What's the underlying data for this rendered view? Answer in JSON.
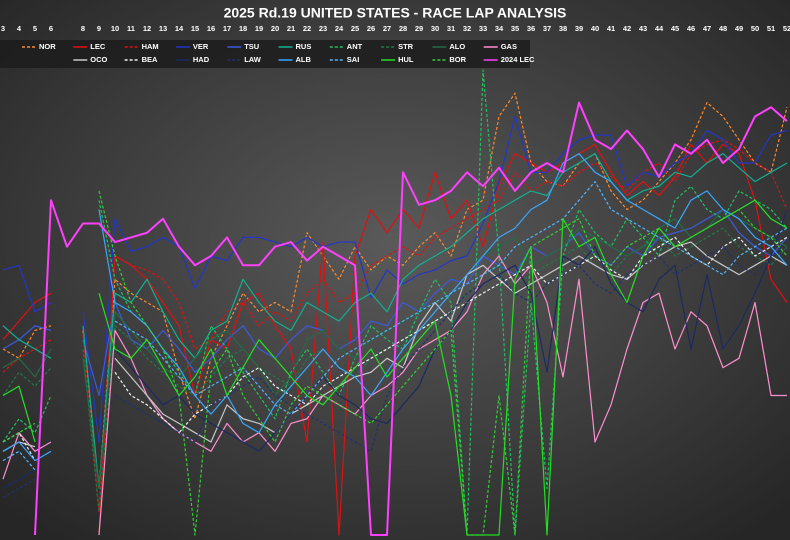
{
  "chart_data": {
    "type": "line",
    "title": "2025 Rd.19 UNITED STATES - RACE LAP ANALYSIS",
    "categories": [
      "3",
      "4",
      "5",
      "6",
      null,
      "8",
      "9",
      "10",
      "11",
      "12",
      "13",
      "14",
      "15",
      "16",
      "17",
      "18",
      "19",
      "20",
      "21",
      "22",
      "23",
      "24",
      "25",
      "26",
      "27",
      "28",
      "29",
      "30",
      "31",
      "32",
      "33",
      "34",
      "35",
      "36",
      "37",
      "38",
      "39",
      "40",
      "41",
      "42",
      "43",
      "44",
      "45",
      "46",
      "47",
      "48",
      "49",
      "50",
      "51",
      "52"
    ],
    "ylim": [
      0,
      100
    ],
    "series": [
      {
        "name": "NOR",
        "color": "#ff8a2a",
        "style": "dashed",
        "values": [
          40,
          38,
          44,
          45,
          null,
          44,
          10,
          55,
          52,
          50,
          48,
          35,
          25,
          38,
          45,
          52,
          48,
          50,
          48,
          65,
          60,
          55,
          62,
          57,
          60,
          58,
          62,
          65,
          60,
          70,
          72,
          90,
          95,
          80,
          76,
          75,
          80,
          82,
          74,
          70,
          72,
          76,
          80,
          85,
          93,
          90,
          85,
          80,
          78,
          92
        ]
      },
      {
        "name": "LEC",
        "color": "#e01010",
        "style": "solid",
        "values": [
          42,
          46,
          50,
          52,
          null,
          null,
          0,
          60,
          58,
          55,
          50,
          45,
          30,
          42,
          40,
          50,
          52,
          45,
          40,
          20,
          63,
          0,
          60,
          70,
          65,
          70,
          66,
          78,
          68,
          72,
          62,
          75,
          82,
          80,
          78,
          80,
          82,
          84,
          78,
          73,
          76,
          73,
          77,
          84,
          80,
          84,
          82,
          72,
          55,
          50
        ]
      },
      {
        "name": "HAM",
        "color": "#e01010",
        "style": "dashed",
        "values": [
          35,
          38,
          40,
          42,
          null,
          43,
          5,
          60,
          58,
          57,
          55,
          50,
          40,
          42,
          48,
          50,
          45,
          48,
          46,
          52,
          55,
          50,
          52,
          58,
          60,
          62,
          60,
          64,
          66,
          68,
          70,
          72,
          78,
          74,
          76,
          75,
          78,
          80,
          77,
          74,
          78,
          80,
          76,
          82,
          84,
          85,
          83,
          80,
          78,
          70
        ]
      },
      {
        "name": "VER",
        "color": "#2336c8",
        "style": "solid",
        "values": [
          57,
          58,
          48,
          50,
          null,
          48,
          20,
          68,
          61,
          62,
          64,
          62,
          53,
          60,
          59,
          64,
          64,
          63,
          62,
          64,
          62,
          63,
          63,
          51,
          57,
          54,
          56,
          57,
          59,
          60,
          67,
          76,
          90,
          78,
          78,
          82,
          85,
          86,
          86,
          75,
          78,
          77,
          80,
          82,
          87,
          85,
          80,
          80,
          86,
          87
        ]
      },
      {
        "name": "TSU",
        "color": "#3b5bdb",
        "style": "solid",
        "values": [
          40,
          42,
          45,
          44,
          null,
          42,
          30,
          50,
          42,
          40,
          44,
          40,
          35,
          38,
          42,
          45,
          40,
          38,
          42,
          45,
          44,
          40,
          42,
          46,
          45,
          50,
          48,
          52,
          55,
          54,
          60,
          58,
          56,
          62,
          60,
          62,
          65,
          60,
          58,
          62,
          60,
          64,
          65,
          66,
          68,
          70,
          65,
          62,
          60,
          64
        ]
      },
      {
        "name": "RUS",
        "color": "#10b090",
        "style": "solid",
        "values": [
          45,
          42,
          40,
          38,
          null,
          45,
          10,
          52,
          50,
          55,
          48,
          42,
          38,
          44,
          46,
          55,
          50,
          46,
          44,
          50,
          48,
          46,
          50,
          52,
          48,
          55,
          58,
          60,
          62,
          65,
          68,
          70,
          72,
          74,
          73,
          78,
          80,
          82,
          76,
          72,
          74,
          75,
          78,
          77,
          80,
          82,
          79,
          76,
          78,
          80
        ]
      },
      {
        "name": "ANT",
        "color": "#20c060",
        "style": "dashed",
        "values": [
          20,
          25,
          22,
          30,
          null,
          null,
          72,
          55,
          48,
          45,
          40,
          35,
          30,
          45,
          40,
          35,
          30,
          25,
          35,
          40,
          35,
          30,
          38,
          45,
          42,
          40,
          48,
          55,
          50,
          0,
          100,
          60,
          0,
          50,
          10,
          60,
          70,
          65,
          62,
          68,
          64,
          60,
          72,
          75,
          70,
          68,
          74,
          72,
          70,
          66
        ]
      },
      {
        "name": "STR",
        "color": "#1f7a4a",
        "style": "dashed",
        "values": [
          30,
          35,
          32,
          36,
          null,
          40,
          5,
          45,
          42,
          38,
          35,
          32,
          30,
          34,
          38,
          40,
          36,
          34,
          32,
          38,
          40,
          36,
          34,
          38,
          40,
          42,
          44,
          46,
          48,
          52,
          56,
          58,
          54,
          56,
          58,
          60,
          62,
          58,
          56,
          60,
          62,
          64,
          60,
          62,
          64,
          66,
          62,
          60,
          58,
          62
        ]
      },
      {
        "name": "ALO",
        "color": "#236b45",
        "style": "solid",
        "values": [
          36,
          38,
          34,
          40,
          null,
          38,
          10,
          48,
          44,
          40,
          36,
          34,
          38,
          42,
          44,
          40,
          36,
          30,
          34,
          42,
          44,
          40,
          38,
          42,
          44,
          46,
          48,
          50,
          52,
          56,
          60,
          62,
          64,
          58,
          60,
          62,
          66,
          64,
          62,
          60,
          62,
          66,
          68,
          64,
          66,
          70,
          68,
          66,
          64,
          62
        ]
      },
      {
        "name": "GAS",
        "color": "#ff8fd0",
        "style": "solid",
        "values": [
          12,
          22,
          18,
          20,
          null,
          null,
          0,
          44,
          38,
          30,
          25,
          22,
          20,
          18,
          24,
          20,
          22,
          18,
          24,
          25,
          30,
          28,
          26,
          30,
          32,
          35,
          40,
          42,
          44,
          48,
          56,
          60,
          54,
          58,
          50,
          34,
          55,
          20,
          28,
          40,
          50,
          52,
          40,
          48,
          45,
          36,
          38,
          50,
          30,
          30
        ]
      },
      {
        "name": "OCO",
        "color": "#c8c8c8",
        "style": "solid",
        "values": [
          18,
          20,
          19,
          null,
          null,
          null,
          null,
          38,
          34,
          30,
          26,
          24,
          22,
          20,
          28,
          25,
          24,
          22,
          26,
          28,
          30,
          32,
          34,
          35,
          38,
          36,
          45,
          50,
          46,
          56,
          58,
          55,
          52,
          54,
          56,
          58,
          60,
          58,
          56,
          55,
          58,
          60,
          62,
          63,
          60,
          58,
          56,
          58,
          60,
          58
        ]
      },
      {
        "name": "BEA",
        "color": "#f0f0f0",
        "style": "dashed",
        "values": [
          20,
          22,
          16,
          null,
          null,
          null,
          null,
          35,
          30,
          28,
          25,
          22,
          26,
          28,
          30,
          34,
          36,
          32,
          30,
          28,
          32,
          34,
          36,
          38,
          40,
          42,
          44,
          46,
          48,
          50,
          52,
          54,
          56,
          58,
          54,
          56,
          58,
          60,
          57,
          55,
          60,
          62,
          64,
          60,
          58,
          62,
          64,
          60,
          62,
          64
        ]
      },
      {
        "name": "HAD",
        "color": "#1c2a60",
        "style": "solid",
        "values": [
          10,
          12,
          14,
          null,
          null,
          null,
          null,
          40,
          36,
          32,
          28,
          30,
          26,
          24,
          22,
          20,
          18,
          22,
          26,
          30,
          34,
          30,
          28,
          25,
          24,
          28,
          32,
          40,
          44,
          50,
          54,
          56,
          58,
          52,
          35,
          60,
          58,
          62,
          54,
          50,
          48,
          55,
          58,
          40,
          56,
          40,
          45,
          52,
          60,
          70
        ]
      },
      {
        "name": "LAW",
        "color": "#22306e",
        "style": "dashed",
        "values": [
          8,
          10,
          12,
          null,
          null,
          null,
          null,
          30,
          28,
          26,
          24,
          22,
          20,
          28,
          30,
          32,
          34,
          30,
          28,
          26,
          24,
          22,
          20,
          18,
          30,
          36,
          40,
          44,
          48,
          52,
          54,
          56,
          52,
          50,
          54,
          56,
          58,
          54,
          52,
          56,
          58,
          60,
          56,
          58,
          60,
          62,
          58,
          56,
          60,
          62
        ]
      },
      {
        "name": "ALB",
        "color": "#37a7ff",
        "style": "solid",
        "values": [
          18,
          20,
          16,
          18,
          null,
          null,
          70,
          50,
          48,
          45,
          40,
          36,
          30,
          26,
          30,
          24,
          22,
          28,
          32,
          36,
          40,
          36,
          34,
          30,
          35,
          40,
          44,
          48,
          52,
          56,
          60,
          64,
          66,
          70,
          72,
          80,
          82,
          78,
          76,
          72,
          70,
          68,
          66,
          72,
          74,
          70,
          68,
          64,
          62,
          58
        ]
      },
      {
        "name": "SAI",
        "color": "#4fb4ff",
        "style": "dashed",
        "values": [
          16,
          18,
          14,
          null,
          null,
          null,
          null,
          46,
          44,
          42,
          38,
          34,
          30,
          32,
          34,
          36,
          32,
          28,
          26,
          30,
          34,
          38,
          40,
          42,
          44,
          46,
          48,
          50,
          52,
          54,
          56,
          58,
          62,
          64,
          66,
          68,
          72,
          76,
          70,
          68,
          66,
          64,
          62,
          60,
          58,
          56,
          60,
          62,
          64,
          66
        ]
      },
      {
        "name": "HUL",
        "color": "#22e022",
        "style": "solid",
        "values": [
          30,
          32,
          20,
          null,
          null,
          null,
          52,
          40,
          38,
          42,
          36,
          30,
          34,
          40,
          30,
          36,
          42,
          38,
          34,
          30,
          28,
          32,
          36,
          40,
          34,
          38,
          42,
          46,
          30,
          0,
          0,
          0,
          55,
          62,
          0,
          68,
          62,
          64,
          56,
          50,
          60,
          66,
          62,
          64,
          66,
          68,
          70,
          72,
          68,
          66
        ]
      },
      {
        "name": "BOR",
        "color": "#30d030",
        "style": "dashed",
        "values": [
          20,
          22,
          24,
          null,
          null,
          null,
          74,
          60,
          50,
          45,
          40,
          30,
          0,
          35,
          40,
          30,
          25,
          20,
          28,
          32,
          30,
          28,
          26,
          24,
          28,
          32,
          36,
          40,
          44,
          0,
          0,
          30,
          0,
          62,
          64,
          66,
          68,
          60,
          58,
          62,
          64,
          66,
          62,
          64,
          66,
          68,
          70,
          66,
          64,
          60
        ]
      },
      {
        "name": "2024 LEC",
        "color": "#ff40ff",
        "style": "solid",
        "width": 2,
        "values": [
          null,
          null,
          0,
          72,
          62,
          67,
          67,
          63,
          64,
          65,
          68,
          62,
          58,
          60,
          64,
          58,
          58,
          62,
          63,
          59,
          62,
          60,
          58,
          0,
          0,
          78,
          71,
          72,
          74,
          78,
          75,
          79,
          74,
          78,
          80,
          78,
          93,
          85,
          83,
          87,
          83,
          77,
          84,
          82,
          85,
          80,
          83,
          90,
          92,
          89
        ]
      }
    ]
  }
}
